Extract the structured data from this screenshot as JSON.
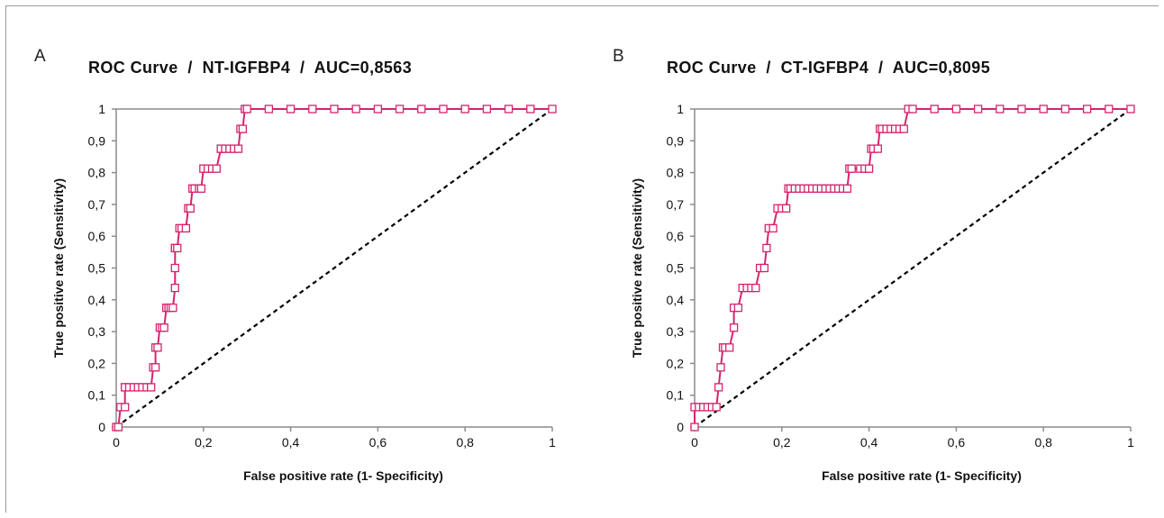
{
  "colors": {
    "curve": "#d6246e",
    "diagonal": "#000000",
    "axis": "#8c8c8c",
    "frame": "#9a9a9a"
  },
  "chart_data": [
    {
      "type": "line",
      "panel": "A",
      "title": "ROC Curve  /  NT-IGFBP4  /  AUC=0,8563",
      "xlabel": "False positive rate (1- Specificity)",
      "ylabel": "True positive rate (Sensitivity)",
      "xlim": [
        0,
        1
      ],
      "ylim": [
        0,
        1
      ],
      "xticks": [
        0,
        0.2,
        0.4,
        0.6,
        0.8,
        1
      ],
      "xtick_labels": [
        "0",
        "0,2",
        "0,4",
        "0,6",
        "0,8",
        "1"
      ],
      "yticks": [
        0,
        0.1,
        0.2,
        0.3,
        0.4,
        0.5,
        0.6,
        0.7,
        0.8,
        0.9,
        1
      ],
      "ytick_labels": [
        "0",
        "0,1",
        "0,2",
        "0,3",
        "0,4",
        "0,5",
        "0,6",
        "0,7",
        "0,8",
        "0,9",
        "1"
      ],
      "grid": false,
      "series": [
        {
          "x": [
            0,
            0.005,
            0.01,
            0.02,
            0.02,
            0.02,
            0.03,
            0.04,
            0.05,
            0.06,
            0.07,
            0.08,
            0.085,
            0.09,
            0.09,
            0.095,
            0.1,
            0.105,
            0.11,
            0.115,
            0.12,
            0.125,
            0.13,
            0.135,
            0.135,
            0.135,
            0.135,
            0.14,
            0.145,
            0.15,
            0.16,
            0.165,
            0.17,
            0.175,
            0.18,
            0.19,
            0.195,
            0.2,
            0.21,
            0.22,
            0.23,
            0.24,
            0.24,
            0.25,
            0.26,
            0.27,
            0.28,
            0.285,
            0.29,
            0.295,
            0.3,
            0.35,
            0.4,
            0.45,
            0.5,
            0.55,
            0.6,
            0.65,
            0.7,
            0.75,
            0.8,
            0.85,
            0.9,
            0.95,
            1.0
          ],
          "y": [
            0,
            0,
            0.0625,
            0.0625,
            0.125,
            0.125,
            0.125,
            0.125,
            0.125,
            0.125,
            0.125,
            0.125,
            0.1875,
            0.1875,
            0.25,
            0.25,
            0.3125,
            0.3125,
            0.3125,
            0.375,
            0.375,
            0.375,
            0.375,
            0.4375,
            0.5,
            0.5625,
            0.5625,
            0.5625,
            0.625,
            0.625,
            0.625,
            0.6875,
            0.6875,
            0.75,
            0.75,
            0.75,
            0.75,
            0.8125,
            0.8125,
            0.8125,
            0.8125,
            0.875,
            0.875,
            0.875,
            0.875,
            0.875,
            0.875,
            0.9375,
            0.9375,
            1.0,
            1.0,
            1.0,
            1.0,
            1.0,
            1.0,
            1.0,
            1.0,
            1.0,
            1.0,
            1.0,
            1.0,
            1.0,
            1.0,
            1.0,
            1.0
          ]
        }
      ]
    },
    {
      "type": "line",
      "panel": "B",
      "title": "ROC Curve  /  CT-IGFBP4  /  AUC=0,8095",
      "xlabel": "False positive rate (1- Specificity)",
      "ylabel": "True positive rate (Sensitivity)",
      "xlim": [
        0,
        1
      ],
      "ylim": [
        0,
        1
      ],
      "xticks": [
        0,
        0.2,
        0.4,
        0.6,
        0.8,
        1
      ],
      "xtick_labels": [
        "0",
        "0,2",
        "0,4",
        "0,6",
        "0,8",
        "1"
      ],
      "yticks": [
        0,
        0.1,
        0.2,
        0.3,
        0.4,
        0.5,
        0.6,
        0.7,
        0.8,
        0.9,
        1
      ],
      "ytick_labels": [
        "0",
        "0,1",
        "0,2",
        "0,3",
        "0,4",
        "0,5",
        "0,6",
        "0,7",
        "0,8",
        "0,9",
        "1"
      ],
      "grid": false,
      "series": [
        {
          "x": [
            0,
            0,
            0.01,
            0.02,
            0.03,
            0.04,
            0.05,
            0.055,
            0.06,
            0.065,
            0.07,
            0.08,
            0.09,
            0.09,
            0.1,
            0.11,
            0.12,
            0.13,
            0.14,
            0.15,
            0.16,
            0.165,
            0.17,
            0.18,
            0.19,
            0.2,
            0.21,
            0.215,
            0.22,
            0.23,
            0.24,
            0.25,
            0.26,
            0.27,
            0.28,
            0.29,
            0.3,
            0.31,
            0.32,
            0.33,
            0.34,
            0.35,
            0.355,
            0.36,
            0.38,
            0.39,
            0.4,
            0.405,
            0.41,
            0.42,
            0.425,
            0.43,
            0.44,
            0.45,
            0.46,
            0.47,
            0.48,
            0.49,
            0.5,
            0.55,
            0.6,
            0.65,
            0.7,
            0.75,
            0.8,
            0.85,
            0.9,
            0.95,
            1.0
          ],
          "y": [
            0,
            0.0625,
            0.0625,
            0.0625,
            0.0625,
            0.0625,
            0.0625,
            0.125,
            0.1875,
            0.25,
            0.25,
            0.25,
            0.3125,
            0.375,
            0.375,
            0.4375,
            0.4375,
            0.4375,
            0.4375,
            0.5,
            0.5,
            0.5625,
            0.625,
            0.625,
            0.6875,
            0.6875,
            0.6875,
            0.75,
            0.75,
            0.75,
            0.75,
            0.75,
            0.75,
            0.75,
            0.75,
            0.75,
            0.75,
            0.75,
            0.75,
            0.75,
            0.75,
            0.75,
            0.8125,
            0.8125,
            0.8125,
            0.8125,
            0.8125,
            0.875,
            0.875,
            0.875,
            0.9375,
            0.9375,
            0.9375,
            0.9375,
            0.9375,
            0.9375,
            0.9375,
            1.0,
            1.0,
            1.0,
            1.0,
            1.0,
            1.0,
            1.0,
            1.0,
            1.0,
            1.0,
            1.0,
            1.0
          ]
        }
      ]
    }
  ]
}
